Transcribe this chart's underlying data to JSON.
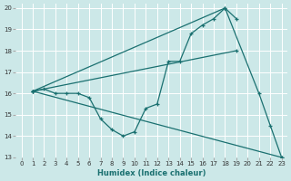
{
  "xlabel": "Humidex (Indice chaleur)",
  "bg_color": "#cce8e8",
  "line_color": "#1a7070",
  "grid_color": "#ffffff",
  "xlim": [
    -0.5,
    23.5
  ],
  "ylim": [
    13,
    20.2
  ],
  "xticks": [
    0,
    1,
    2,
    3,
    4,
    5,
    6,
    7,
    8,
    9,
    10,
    11,
    12,
    13,
    14,
    15,
    16,
    17,
    18,
    19,
    20,
    21,
    22,
    23
  ],
  "yticks": [
    13,
    14,
    15,
    16,
    17,
    18,
    19,
    20
  ],
  "lines": [
    {
      "x": [
        1,
        2,
        3,
        4,
        5,
        6,
        7,
        8,
        9,
        10,
        11,
        12,
        13,
        14,
        15,
        16,
        17,
        18,
        21,
        22,
        23
      ],
      "y": [
        16.1,
        16.2,
        16.0,
        16.0,
        16.0,
        15.8,
        14.8,
        14.3,
        14.0,
        14.2,
        15.3,
        15.5,
        17.5,
        17.5,
        18.8,
        19.2,
        19.5,
        20.0,
        16.0,
        14.5,
        13.0
      ]
    },
    {
      "x": [
        1,
        18,
        19
      ],
      "y": [
        16.1,
        20.0,
        19.5
      ]
    },
    {
      "x": [
        1,
        23
      ],
      "y": [
        16.1,
        13.0
      ]
    },
    {
      "x": [
        1,
        19
      ],
      "y": [
        16.1,
        18.0
      ]
    }
  ]
}
